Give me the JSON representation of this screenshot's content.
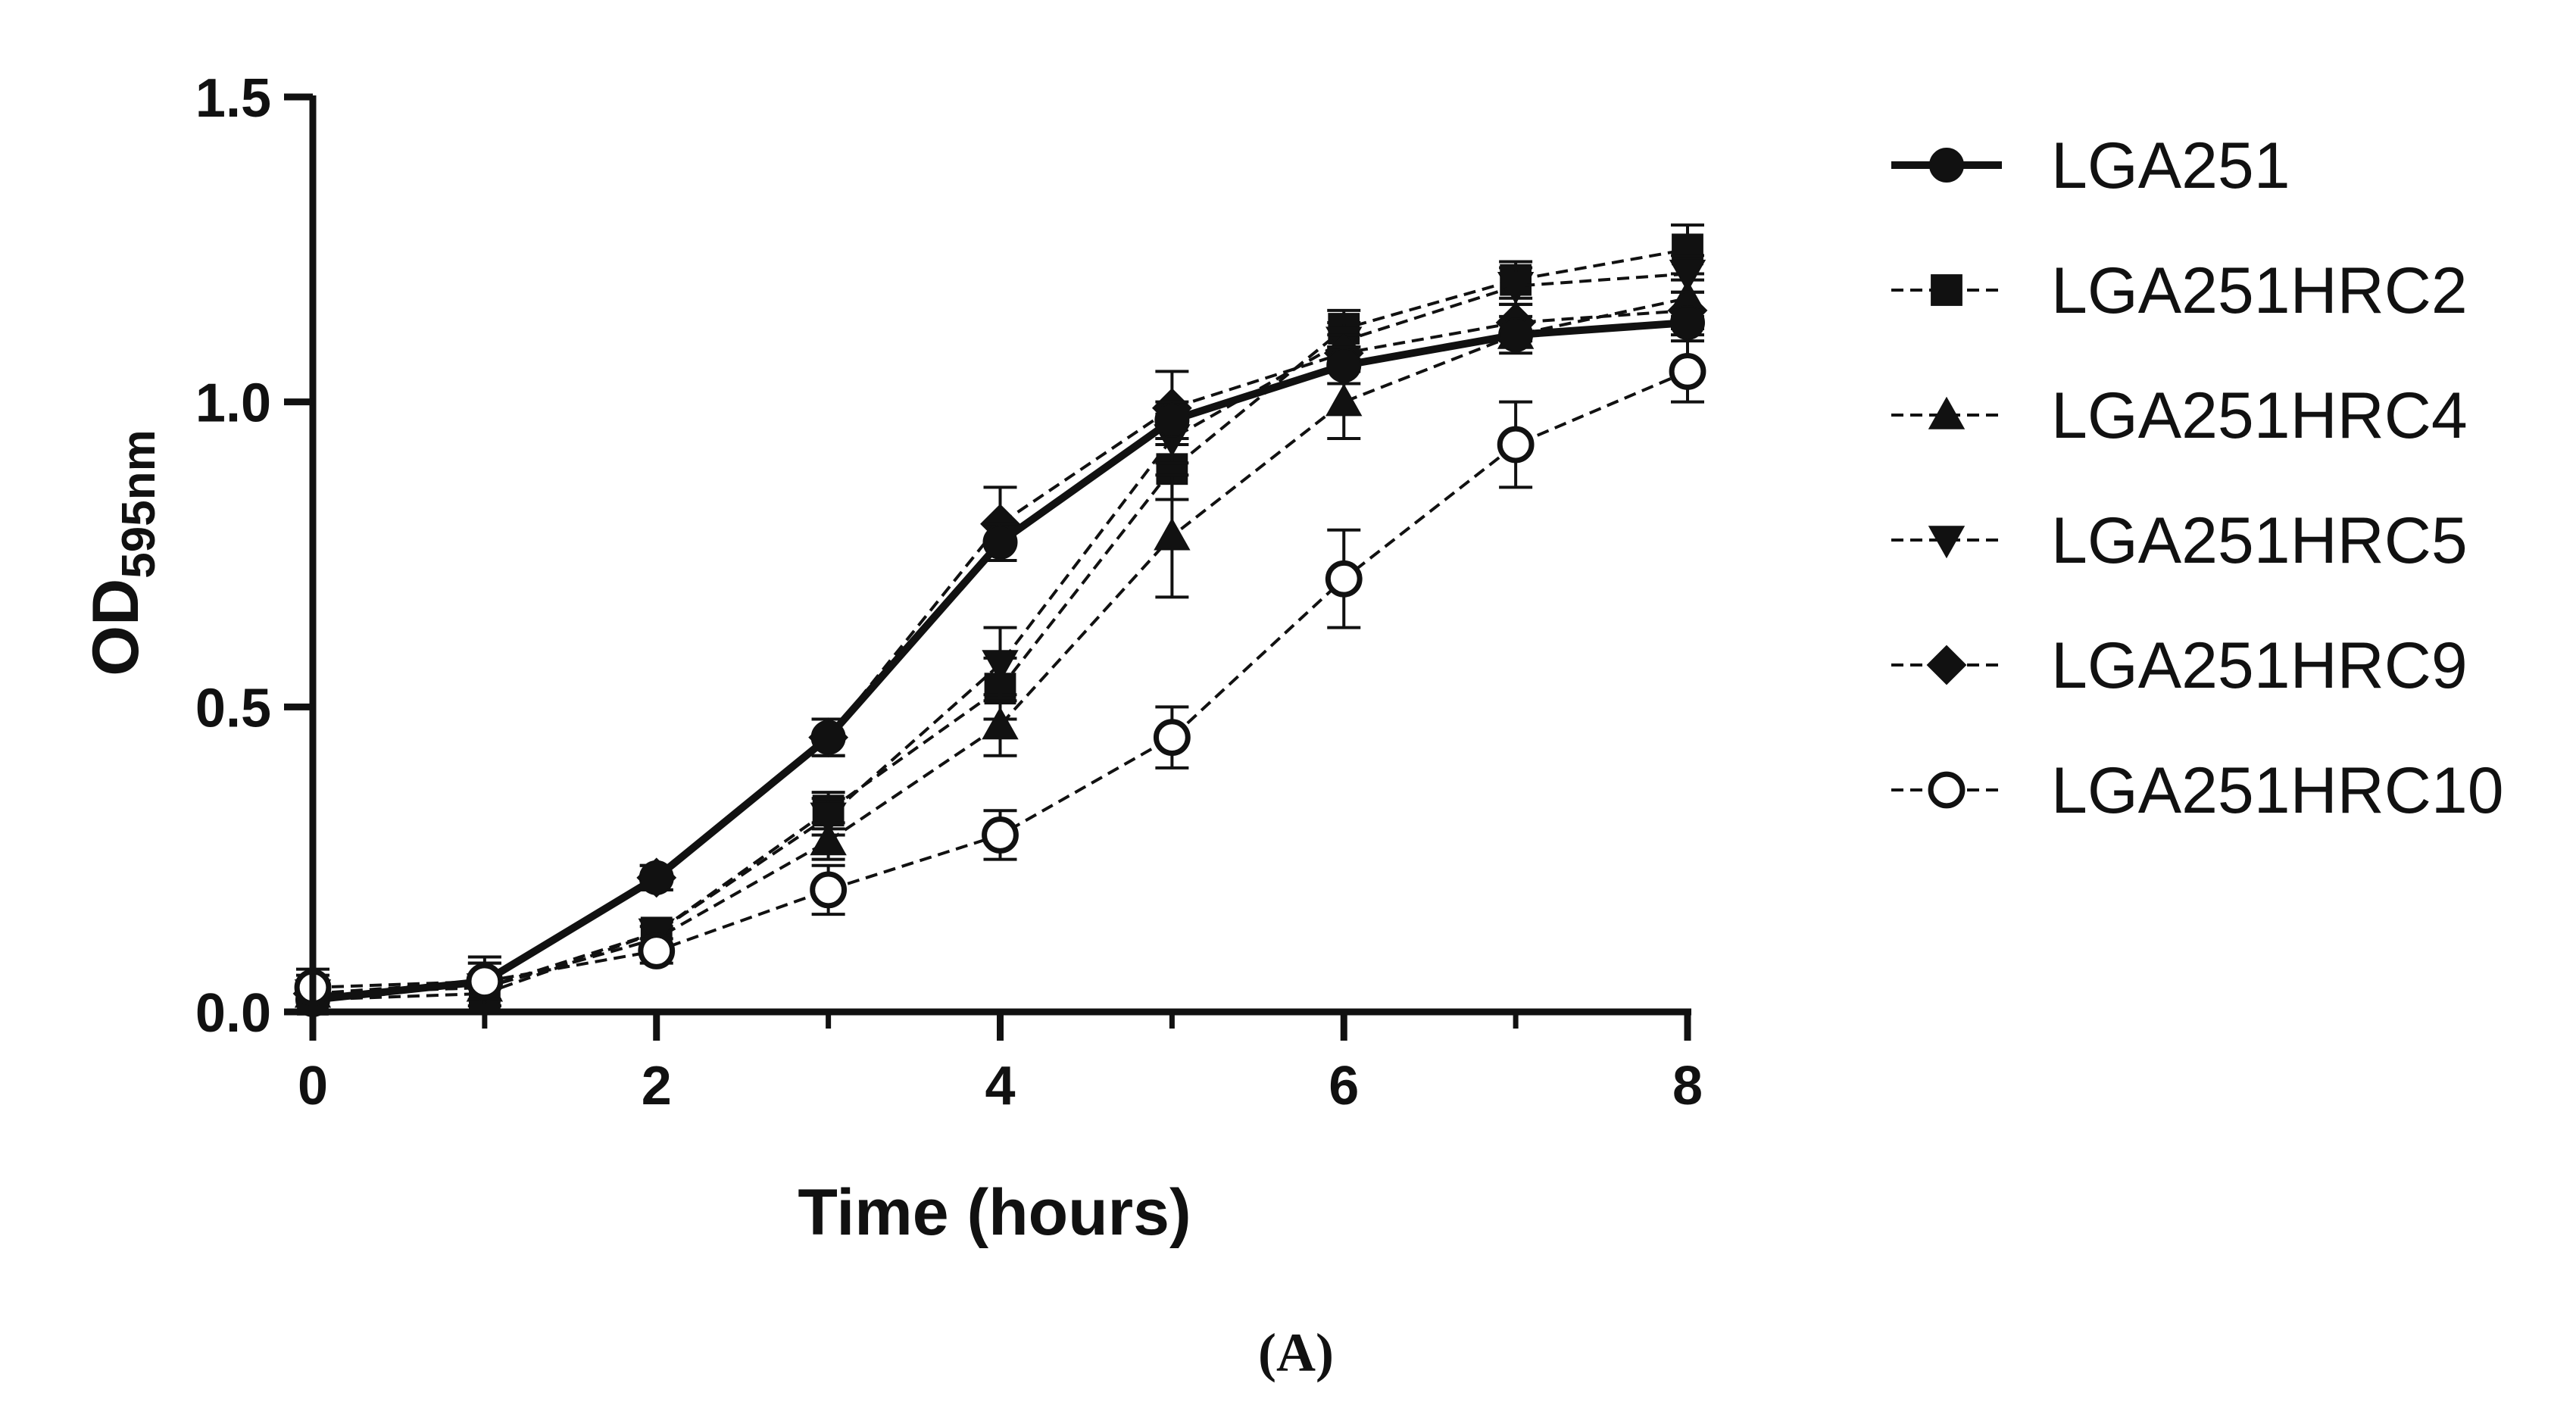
{
  "chart_data": {
    "type": "line",
    "xlabel": "Time (hours)",
    "ylabel_main": "OD",
    "ylabel_sub": "595nm",
    "x": [
      0,
      1,
      2,
      3,
      4,
      5,
      6,
      7,
      8
    ],
    "xlim": [
      0,
      8
    ],
    "ylim": [
      0,
      1.5
    ],
    "xticks": [
      "0",
      "2",
      "4",
      "6",
      "8"
    ],
    "yticks": [
      "0.0",
      "0.5",
      "1.0",
      "1.5"
    ],
    "legend_position": "right",
    "panel_label": "(A)",
    "series": [
      {
        "name": "LGA251",
        "marker": "circle-filled",
        "line": "solid",
        "values": [
          0.02,
          0.05,
          0.22,
          0.45,
          0.77,
          0.97,
          1.06,
          1.11,
          1.13
        ],
        "errors": [
          0.02,
          0.03,
          0.02,
          0.03,
          0.03,
          0.03,
          0.03,
          0.02,
          0.02
        ]
      },
      {
        "name": "LGA251HRC2",
        "marker": "square-filled",
        "line": "dashed",
        "values": [
          0.02,
          0.03,
          0.13,
          0.33,
          0.53,
          0.89,
          1.12,
          1.2,
          1.25
        ],
        "errors": [
          0.02,
          0.02,
          0.02,
          0.03,
          0.05,
          0.05,
          0.03,
          0.03,
          0.04
        ]
      },
      {
        "name": "LGA251HRC4",
        "marker": "triangle-up-filled",
        "line": "dashed",
        "values": [
          0.03,
          0.04,
          0.12,
          0.28,
          0.47,
          0.78,
          1.0,
          1.11,
          1.17
        ],
        "errors": [
          0.02,
          0.02,
          0.02,
          0.03,
          0.05,
          0.1,
          0.06,
          0.03,
          0.03
        ]
      },
      {
        "name": "LGA251HRC5",
        "marker": "triangle-down-filled",
        "line": "dashed",
        "values": [
          0.03,
          0.04,
          0.13,
          0.32,
          0.57,
          0.94,
          1.1,
          1.19,
          1.21
        ],
        "errors": [
          0.02,
          0.02,
          0.02,
          0.03,
          0.06,
          0.04,
          0.03,
          0.03,
          0.03
        ]
      },
      {
        "name": "LGA251HRC9",
        "marker": "diamond-filled",
        "line": "dashed",
        "values": [
          0.03,
          0.05,
          0.22,
          0.45,
          0.8,
          0.99,
          1.08,
          1.13,
          1.15
        ],
        "errors": [
          0.03,
          0.03,
          0.02,
          0.03,
          0.06,
          0.06,
          0.03,
          0.03,
          0.03
        ]
      },
      {
        "name": "LGA251HRC10",
        "marker": "circle-open",
        "line": "dashed",
        "values": [
          0.04,
          0.05,
          0.1,
          0.2,
          0.29,
          0.45,
          0.71,
          0.93,
          1.05
        ],
        "errors": [
          0.03,
          0.04,
          0.02,
          0.04,
          0.04,
          0.05,
          0.08,
          0.07,
          0.05
        ]
      }
    ]
  }
}
